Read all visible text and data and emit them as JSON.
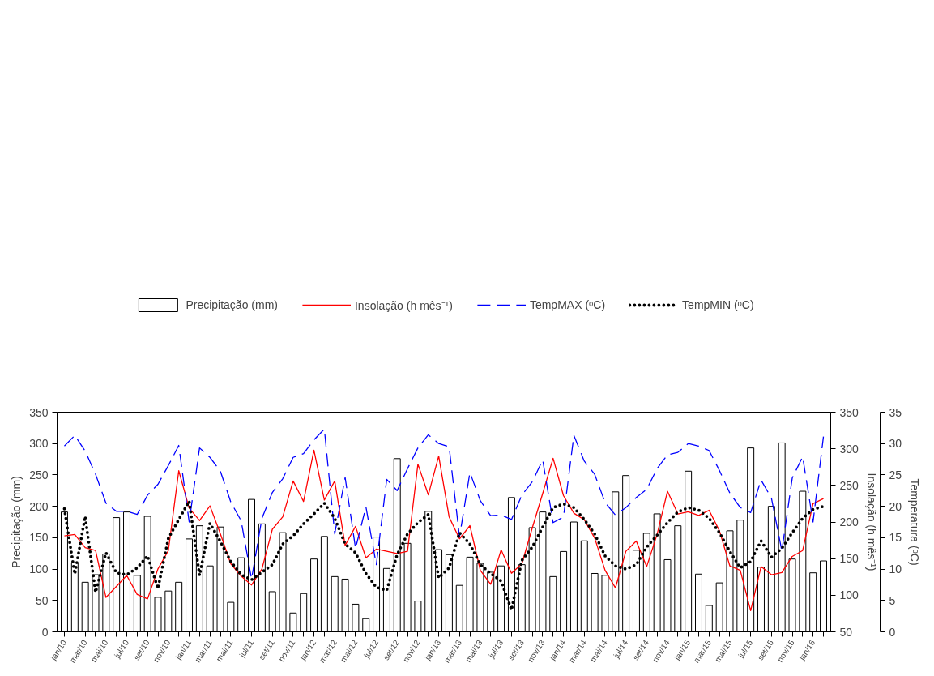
{
  "chart_data": {
    "type": "bar",
    "categories": [
      "jan/10",
      null,
      "mar/10",
      null,
      "mai/10",
      null,
      "jul/10",
      null,
      "set/10",
      null,
      "nov/10",
      null,
      "jan/11",
      null,
      "mar/11",
      null,
      "mai/11",
      null,
      "jul/11",
      null,
      "set/11",
      null,
      "nov/11",
      null,
      "jan/12",
      null,
      "mar/12",
      null,
      "mai/12",
      null,
      "jul/12",
      null,
      "set/12",
      null,
      "nov/12",
      null,
      "jan/13",
      null,
      "mar/13",
      null,
      "mai/13",
      null,
      "jul/13",
      null,
      "set/13",
      null,
      "nov/13",
      null,
      "jan/14",
      null,
      "mar/14",
      null,
      "mai/14",
      null,
      "jul/14",
      null,
      "set/14",
      null,
      "nov/14",
      null,
      "jan/15",
      null,
      "mar/15",
      null,
      "mai/15",
      null,
      "jul/15",
      null,
      "set/15",
      null,
      "nov/15",
      null,
      "jan/16",
      null
    ],
    "ylabel": "Precipitação (mm)",
    "y2label": "Insolação (h mês⁻¹)",
    "y3label": "Temperatura (ᵒC)",
    "ylim": [
      0,
      350
    ],
    "yticks": [
      0,
      50,
      100,
      150,
      200,
      250,
      300,
      350
    ],
    "y2lim": [
      50,
      350
    ],
    "y2ticks": [
      50,
      100,
      150,
      200,
      250,
      300,
      350
    ],
    "y3lim": [
      0,
      35
    ],
    "y3ticks": [
      0,
      5,
      10,
      15,
      20,
      25,
      30,
      35
    ],
    "grid": false,
    "legend": "top",
    "marker": "none",
    "series": [
      {
        "name": "Precipitação (mm)",
        "color": "#ffffff",
        "values": [
          191,
          110,
          79,
          91,
          124,
          182,
          191,
          90,
          184,
          55,
          65,
          79,
          148,
          169,
          105,
          167,
          47,
          118,
          211,
          172,
          64,
          158,
          30,
          61,
          116,
          152,
          88,
          84,
          44,
          21,
          151,
          101,
          276,
          141,
          49,
          192,
          131,
          123,
          74,
          119,
          109,
          95,
          105,
          214,
          107,
          166,
          191,
          88,
          128,
          175,
          145,
          93,
          90,
          223,
          249,
          130,
          157,
          188,
          115,
          169,
          256,
          92,
          42,
          78,
          161,
          178,
          293,
          103,
          200,
          301,
          116,
          224,
          94,
          113
        ]
      },
      {
        "name": "Insolação (h mês⁻¹)",
        "type": "line",
        "axis": "y2",
        "color": "#ff0000",
        "line_style": "solid",
        "values": [
          181,
          183,
          165,
          161,
          97,
          112,
          127,
          101,
          95,
          136,
          161,
          270,
          219,
          202,
          222,
          184,
          143,
          126,
          114,
          136,
          190,
          207,
          256,
          228,
          298,
          230,
          256,
          168,
          194,
          151,
          163,
          160,
          157,
          160,
          279,
          237,
          290,
          207,
          177,
          195,
          134,
          115,
          162,
          130,
          143,
          192,
          239,
          287,
          236,
          212,
          203,
          178,
          134,
          110,
          160,
          174,
          139,
          183,
          242,
          211,
          214,
          209,
          216,
          188,
          140,
          134,
          79,
          139,
          128,
          131,
          153,
          161,
          225,
          232
        ]
      },
      {
        "name": "TempMAX (ᵒC)",
        "type": "line",
        "axis": "y3",
        "color": "#0000ff",
        "line_style": "dashed",
        "values": [
          29.6,
          31.3,
          28.8,
          25.1,
          20.5,
          19.2,
          19.2,
          18.7,
          21.8,
          23.5,
          26.5,
          29.7,
          17.5,
          29.3,
          27.8,
          25.6,
          20.7,
          17.7,
          8.4,
          18.1,
          22.2,
          24.4,
          27.8,
          28.4,
          30.6,
          32.3,
          15.6,
          24.6,
          13.3,
          19.9,
          10.7,
          24.3,
          22.5,
          26.0,
          29.3,
          31.4,
          30.0,
          29.5,
          15.1,
          25.4,
          20.9,
          18.5,
          18.6,
          17.9,
          21.8,
          23.9,
          27.4,
          17.4,
          18.3,
          31.3,
          27.2,
          25.1,
          20.6,
          18.6,
          19.8,
          21.4,
          22.7,
          26.0,
          28.2,
          28.6,
          30.0,
          29.6,
          28.9,
          25.7,
          22.1,
          19.8,
          19.0,
          24.2,
          21.3,
          12.9,
          24.5,
          27.9,
          17.5,
          31.1
        ]
      },
      {
        "name": "TempMIN (ᵒC)",
        "type": "line",
        "axis": "y3",
        "color": "#000000",
        "line_style": "dotted",
        "values": [
          19.6,
          9.2,
          18.4,
          6.3,
          12.6,
          9.4,
          9.1,
          10.2,
          12.1,
          6.9,
          14.9,
          17.9,
          20.8,
          9.0,
          17.3,
          14.4,
          11.2,
          9.1,
          8.3,
          9.5,
          10.7,
          14.0,
          15.3,
          17.2,
          18.8,
          20.5,
          18.1,
          14.0,
          12.6,
          9.3,
          7.1,
          6.6,
          12.3,
          15.6,
          17.4,
          18.7,
          8.6,
          10.2,
          15.8,
          14.0,
          10.7,
          9.3,
          8.1,
          3.5,
          11.4,
          13.5,
          16.7,
          19.8,
          20.4,
          19.8,
          17.9,
          15.6,
          12.1,
          10.5,
          10.0,
          10.7,
          13.5,
          15.4,
          17.4,
          19.1,
          19.8,
          19.4,
          18.1,
          15.8,
          12.8,
          10.2,
          11.2,
          14.5,
          11.9,
          13.3,
          15.8,
          18.1,
          19.5,
          20.0
        ]
      }
    ]
  }
}
